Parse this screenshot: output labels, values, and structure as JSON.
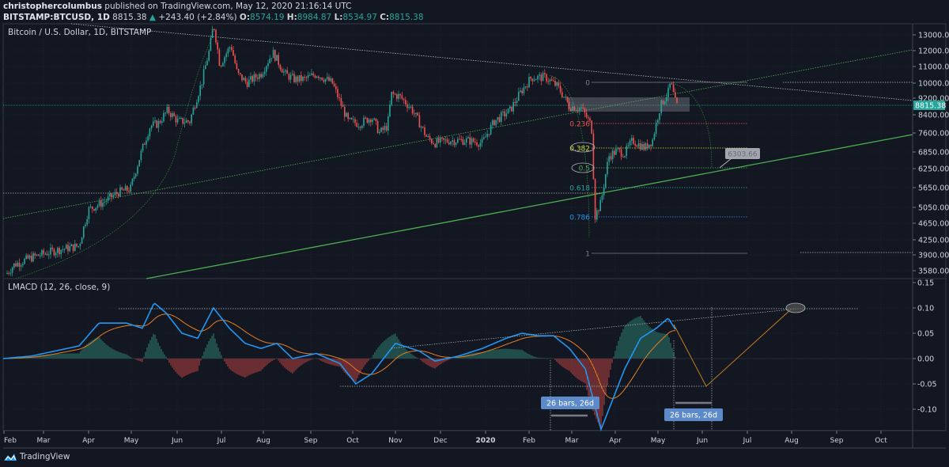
{
  "header": {
    "author": "christophercolumbus",
    "published_text": "published on TradingView.com, May 12, 2020 21:16:14 UTC",
    "symbol": "BITSTAMP:BTCUSD, 1D",
    "last_price": "8815.38",
    "change": "+243.40 (+2.84%)",
    "open_label": "O:",
    "open": "8574.19",
    "high_label": "H:",
    "high": "8984.87",
    "low_label": "L:",
    "low": "8534.97",
    "close_label": "C:",
    "close": "8815.38"
  },
  "chart_title": "Bitcoin / U.S. Dollar, 1D, BITSTAMP",
  "price_axis": {
    "labels": [
      "13000.00",
      "12000.00",
      "11000.00",
      "10000.00",
      "9200.00",
      "8400.00",
      "7600.00",
      "6850.00",
      "6250.00",
      "5650.00",
      "5050.00",
      "4650.00",
      "4250.00",
      "3900.00",
      "3580.00"
    ],
    "current_price_tag": "8815.38"
  },
  "macd_pane": {
    "title": "LMACD (12, 26, close, 9)",
    "axis_labels": [
      "0.15",
      "0.10",
      "0.05",
      "0.00",
      "-0.05",
      "-0.10"
    ]
  },
  "time_axis": {
    "labels": [
      "Feb",
      "Mar",
      "Apr",
      "May",
      "Jun",
      "Jul",
      "Aug",
      "Sep",
      "Oct",
      "Nov",
      "Dec",
      "2020",
      "Feb",
      "Mar",
      "Apr",
      "May",
      "Jun",
      "Jul",
      "Aug",
      "Sep",
      "Oct"
    ]
  },
  "fib_levels": [
    "0",
    "0.236",
    "0.382",
    "0.5",
    "0.618",
    "0.786",
    "1"
  ],
  "price_callout": "6303.66",
  "range_labels": [
    "26 bars, 26d",
    "26 bars, 26d"
  ],
  "brand": "TradingView",
  "colors": {
    "background": "#131722",
    "up": "#26a69a",
    "down": "#ef5350",
    "macd": "#2196f3",
    "signal": "#e67e22",
    "trendline_green": "#4caf50"
  },
  "chart_data": {
    "type": "candlestick",
    "title": "Bitcoin / U.S. Dollar, 1D, BITSTAMP",
    "symbol": "BITSTAMP:BTCUSD",
    "interval": "1D",
    "ohlc_last": {
      "open": 8574.19,
      "high": 8984.87,
      "low": 8534.97,
      "close": 8815.38,
      "change": 243.4,
      "change_pct": 2.84
    },
    "x_ticks": [
      "Feb 2019",
      "Mar",
      "Apr",
      "May",
      "Jun",
      "Jul",
      "Aug",
      "Sep",
      "Oct",
      "Nov",
      "Dec",
      "2020",
      "Feb",
      "Mar",
      "Apr",
      "May",
      "Jun",
      "Jul",
      "Aug",
      "Sep",
      "Oct"
    ],
    "y_scale": "log",
    "y_ticks": [
      3580,
      3900,
      4250,
      4650,
      5050,
      5650,
      6250,
      6850,
      7600,
      8400,
      9200,
      10000,
      11000,
      12000,
      13000
    ],
    "approx_close_by_month": [
      {
        "x": "Feb 2019",
        "close": 3800
      },
      {
        "x": "Mar 2019",
        "close": 4100
      },
      {
        "x": "Apr 2019",
        "close": 5300
      },
      {
        "x": "May 2019",
        "close": 8500
      },
      {
        "x": "Jun 2019",
        "close": 11500
      },
      {
        "x": "Jul 2019",
        "close": 10000
      },
      {
        "x": "Aug 2019",
        "close": 9600
      },
      {
        "x": "Sep 2019",
        "close": 8300
      },
      {
        "x": "Oct 2019",
        "close": 9200
      },
      {
        "x": "Nov 2019",
        "close": 7500
      },
      {
        "x": "Dec 2019",
        "close": 7200
      },
      {
        "x": "Jan 2020",
        "close": 9350
      },
      {
        "x": "Feb 2020",
        "close": 8600
      },
      {
        "x": "Mar 2020",
        "close": 6400
      },
      {
        "x": "Apr 2020",
        "close": 8600
      },
      {
        "x": "May 2020",
        "close": 8815
      }
    ],
    "fibonacci_retracement": [
      {
        "level": "0",
        "price": 10000
      },
      {
        "level": "0.236",
        "price": 8000
      },
      {
        "level": "0.382",
        "price": 6950
      },
      {
        "level": "0.5",
        "price": 6300
      },
      {
        "level": "0.618",
        "price": 5650
      },
      {
        "level": "0.786",
        "price": 4850
      },
      {
        "level": "1",
        "price": 3900
      }
    ],
    "annotations": [
      "6303.66 callout on rising green trendline",
      "Rectangle zone approx 8600-9300",
      "Descending trendline from ~13800"
    ],
    "indicator": {
      "name": "LMACD (12, 26, close, 9)",
      "ylim": [
        -0.13,
        0.15
      ],
      "y_ticks": [
        -0.1,
        -0.05,
        0.0,
        0.05,
        0.1,
        0.15
      ],
      "macd_peaks": [
        {
          "x": "May 2019",
          "value": 0.11
        },
        {
          "x": "Jun 2019",
          "value": 0.1
        },
        {
          "x": "Feb 2020",
          "value": 0.05
        },
        {
          "x": "May 2020",
          "value": 0.08
        }
      ],
      "macd_trough": {
        "x": "Mar 2020",
        "value": -0.14
      },
      "projection": [
        {
          "x": "May 2020",
          "value": 0.07
        },
        {
          "x": "Jun 2020",
          "value": -0.05
        },
        {
          "x": "Aug 2020",
          "value": 0.1
        }
      ]
    }
  }
}
